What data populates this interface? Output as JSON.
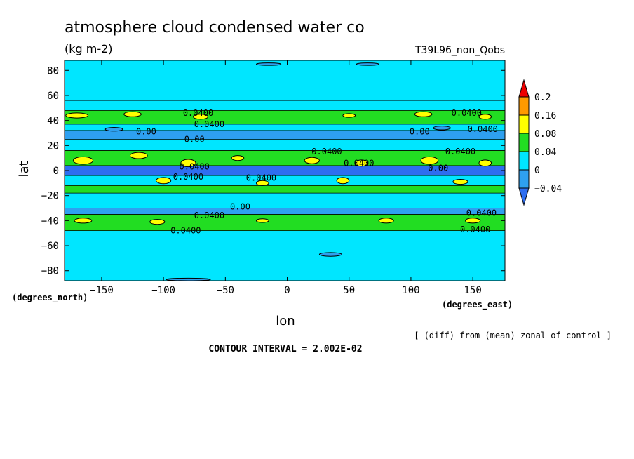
{
  "chart_data": {
    "type": "heatmap",
    "title": "atmosphere cloud condensed water co",
    "units": "(kg m-2)",
    "run_label": "T39L96_non_Qobs",
    "xlabel": "lon",
    "ylabel": "lat",
    "x_unit_label": "(degrees_east)",
    "y_unit_label": "(degrees_north)",
    "xlim": [
      -180,
      176
    ],
    "ylim": [
      -88,
      88
    ],
    "x_ticks": [
      -150,
      -100,
      -50,
      0,
      50,
      100,
      150
    ],
    "y_ticks": [
      80,
      60,
      40,
      20,
      0,
      -20,
      -40,
      -60,
      -80
    ],
    "subtitle_note": "[ (diff) from (mean) zonal of control ]",
    "contour_interval": "CONTOUR INTERVAL = 2.002E-02",
    "colorbar": {
      "levels": [
        "0.2",
        "0.16",
        "0.08",
        "0.04",
        "0",
        "-0.04"
      ],
      "bins": [
        {
          "from": 0.16,
          "to": 0.2,
          "color": "#ff9a00"
        },
        {
          "from": 0.08,
          "to": 0.16,
          "color": "#ffff00"
        },
        {
          "from": 0.04,
          "to": 0.08,
          "color": "#22dd22"
        },
        {
          "from": 0.0,
          "to": 0.04,
          "color": "#00e6ff"
        },
        {
          "from": -0.04,
          "to": 0.0,
          "color": "#2ea0f0"
        }
      ],
      "over_color": "#ee0000",
      "under_color": "#2e6ef0"
    },
    "zonal_bands": [
      {
        "lat_from": 88,
        "lat_to": 56,
        "value": 0.02,
        "class": "cyan"
      },
      {
        "lat_from": 56,
        "lat_to": 48,
        "value": 0.03,
        "class": "cyan"
      },
      {
        "lat_from": 48,
        "lat_to": 37,
        "value": 0.06,
        "class": "green"
      },
      {
        "lat_from": 37,
        "lat_to": 32,
        "value": 0.02,
        "class": "cyan"
      },
      {
        "lat_from": 32,
        "lat_to": 25,
        "value": -0.01,
        "class": "blue"
      },
      {
        "lat_from": 25,
        "lat_to": 16,
        "value": 0.02,
        "class": "cyan"
      },
      {
        "lat_from": 16,
        "lat_to": 4,
        "value": 0.06,
        "class": "green"
      },
      {
        "lat_from": 4,
        "lat_to": -4,
        "value": -0.05,
        "class": "dark-blue"
      },
      {
        "lat_from": -4,
        "lat_to": -12,
        "value": 0.03,
        "class": "cyan"
      },
      {
        "lat_from": -12,
        "lat_to": -18,
        "value": 0.05,
        "class": "green"
      },
      {
        "lat_from": -18,
        "lat_to": -30,
        "value": 0.02,
        "class": "cyan"
      },
      {
        "lat_from": -30,
        "lat_to": -35,
        "value": -0.01,
        "class": "blue"
      },
      {
        "lat_from": -35,
        "lat_to": -48,
        "value": 0.06,
        "class": "green"
      },
      {
        "lat_from": -48,
        "lat_to": -88,
        "value": 0.02,
        "class": "cyan"
      }
    ],
    "highlight_patches": [
      {
        "lon": -170,
        "lat": 44,
        "w": 18,
        "h": 4,
        "class": "yellow"
      },
      {
        "lon": -125,
        "lat": 45,
        "w": 14,
        "h": 4,
        "class": "yellow"
      },
      {
        "lon": -70,
        "lat": 43,
        "w": 12,
        "h": 4,
        "class": "yellow"
      },
      {
        "lon": 50,
        "lat": 44,
        "w": 10,
        "h": 3,
        "class": "yellow"
      },
      {
        "lon": 110,
        "lat": 45,
        "w": 14,
        "h": 4,
        "class": "yellow"
      },
      {
        "lon": 160,
        "lat": 43,
        "w": 10,
        "h": 4,
        "class": "yellow"
      },
      {
        "lon": -165,
        "lat": 8,
        "w": 16,
        "h": 6,
        "class": "yellow"
      },
      {
        "lon": -120,
        "lat": 12,
        "w": 14,
        "h": 5,
        "class": "yellow"
      },
      {
        "lon": -80,
        "lat": 6,
        "w": 12,
        "h": 6,
        "class": "yellow"
      },
      {
        "lon": -40,
        "lat": 10,
        "w": 10,
        "h": 4,
        "class": "yellow"
      },
      {
        "lon": 20,
        "lat": 8,
        "w": 12,
        "h": 5,
        "class": "yellow"
      },
      {
        "lon": 60,
        "lat": 6,
        "w": 10,
        "h": 5,
        "class": "yellow"
      },
      {
        "lon": 115,
        "lat": 8,
        "w": 14,
        "h": 6,
        "class": "yellow"
      },
      {
        "lon": 160,
        "lat": 6,
        "w": 10,
        "h": 5,
        "class": "yellow"
      },
      {
        "lon": -100,
        "lat": -8,
        "w": 12,
        "h": 5,
        "class": "yellow"
      },
      {
        "lon": -20,
        "lat": -10,
        "w": 10,
        "h": 4,
        "class": "yellow"
      },
      {
        "lon": 45,
        "lat": -8,
        "w": 10,
        "h": 5,
        "class": "yellow"
      },
      {
        "lon": 140,
        "lat": -9,
        "w": 12,
        "h": 4,
        "class": "yellow"
      },
      {
        "lon": -165,
        "lat": -40,
        "w": 14,
        "h": 4,
        "class": "yellow"
      },
      {
        "lon": -105,
        "lat": -41,
        "w": 12,
        "h": 4,
        "class": "yellow"
      },
      {
        "lon": -20,
        "lat": -40,
        "w": 10,
        "h": 3,
        "class": "yellow"
      },
      {
        "lon": 80,
        "lat": -40,
        "w": 12,
        "h": 4,
        "class": "yellow"
      },
      {
        "lon": 150,
        "lat": -40,
        "w": 12,
        "h": 4,
        "class": "yellow"
      },
      {
        "lon": -80,
        "lat": -87,
        "w": 36,
        "h": 2,
        "class": "blue"
      },
      {
        "lon": -15,
        "lat": 85,
        "w": 20,
        "h": 2,
        "class": "blue"
      },
      {
        "lon": 65,
        "lat": 85,
        "w": 18,
        "h": 2,
        "class": "blue"
      },
      {
        "lon": 35,
        "lat": -67,
        "w": 18,
        "h": 3,
        "class": "blue"
      },
      {
        "lon": 125,
        "lat": 34,
        "w": 14,
        "h": 3,
        "class": "blue"
      },
      {
        "lon": -140,
        "lat": 33,
        "w": 14,
        "h": 3,
        "class": "blue"
      }
    ],
    "contour_labels": [
      {
        "text": "0.0400",
        "lon": -72,
        "lat": 46
      },
      {
        "text": "0.0400",
        "lon": -63,
        "lat": 37
      },
      {
        "text": "0.00",
        "lon": -114,
        "lat": 31
      },
      {
        "text": "0.00",
        "lon": -75,
        "lat": 25
      },
      {
        "text": "0.0400",
        "lon": 32,
        "lat": 15
      },
      {
        "text": "0.0400",
        "lon": 145,
        "lat": 46
      },
      {
        "text": "0.0400",
        "lon": 158,
        "lat": 33
      },
      {
        "text": "0.00",
        "lon": 107,
        "lat": 31
      },
      {
        "text": "0.0400",
        "lon": 140,
        "lat": 15
      },
      {
        "text": "0.0400",
        "lon": 58,
        "lat": 6
      },
      {
        "text": "0.00",
        "lon": 122,
        "lat": 2
      },
      {
        "text": "0.0400",
        "lon": -75,
        "lat": 3
      },
      {
        "text": "0.0400",
        "lon": -80,
        "lat": -5
      },
      {
        "text": "0.0400",
        "lon": -21,
        "lat": -6
      },
      {
        "text": "0.00",
        "lon": -38,
        "lat": -29
      },
      {
        "text": "0.0400",
        "lon": -63,
        "lat": -36
      },
      {
        "text": "0.0400",
        "lon": 157,
        "lat": -34
      },
      {
        "text": "0.0400",
        "lon": -82,
        "lat": -48
      },
      {
        "text": "0.0400",
        "lon": 152,
        "lat": -47
      }
    ]
  }
}
